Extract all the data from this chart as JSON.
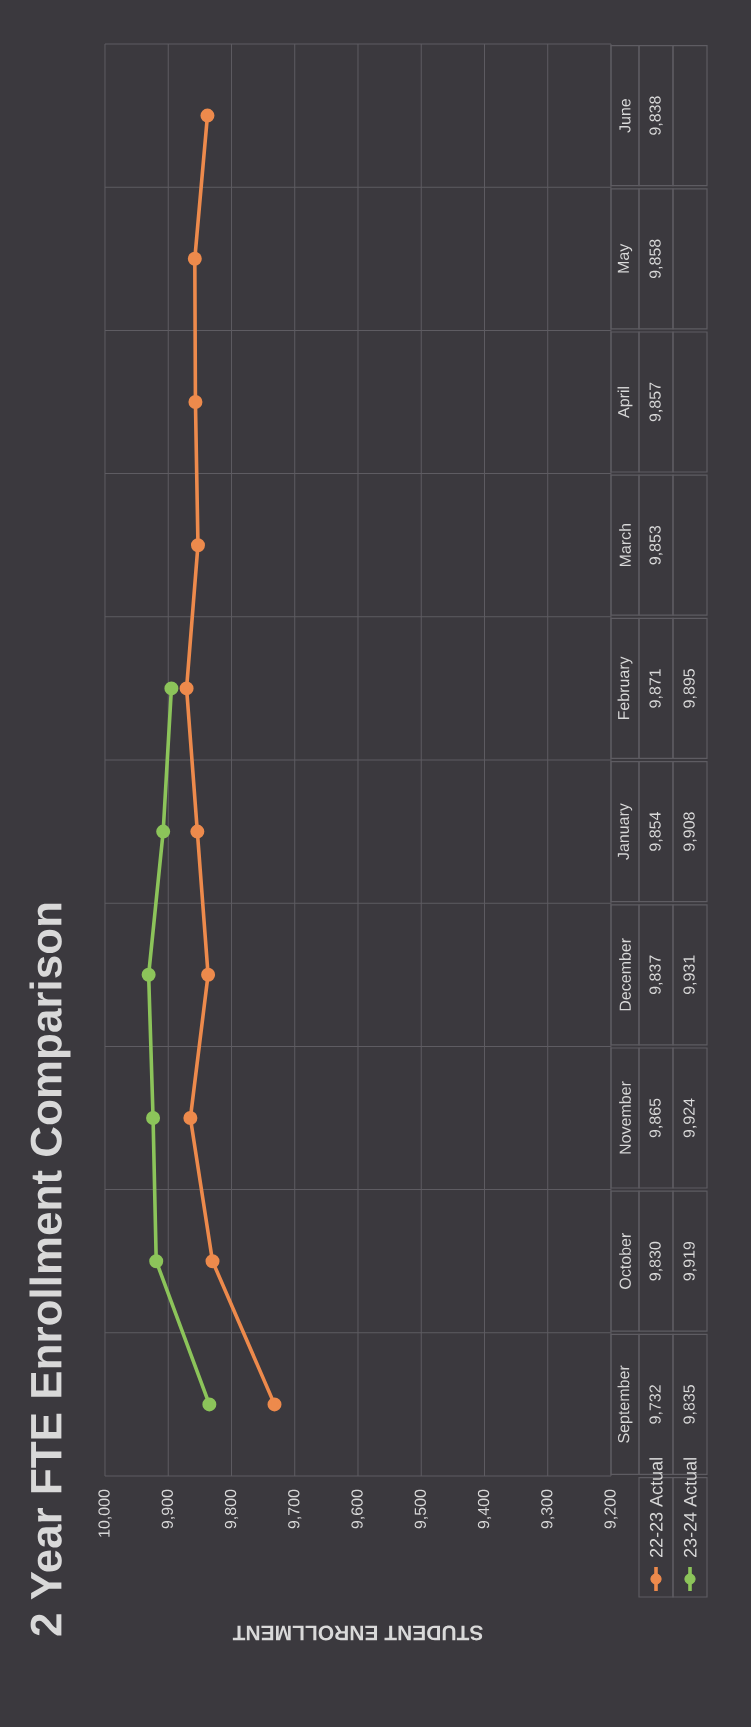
{
  "chart_data": {
    "type": "line",
    "title": "2 Year FTE Enrollment Comparison",
    "xlabel": "STUDENT ENROLLMENT",
    "orientation": "horizontal",
    "categories": [
      "June",
      "May",
      "April",
      "March",
      "February",
      "January",
      "December",
      "November",
      "October",
      "September"
    ],
    "series": [
      {
        "name": "22-23 Actual",
        "color": "#ed8a4c",
        "values": [
          9838,
          9858,
          9857,
          9853,
          9871,
          9854,
          9837,
          9865,
          9830,
          9732
        ],
        "value_labels": [
          "9,838",
          "9,858",
          "9,857",
          "9,853",
          "9,871",
          "9,854",
          "9,837",
          "9,865",
          "9,830",
          "9,732"
        ]
      },
      {
        "name": "23-24 Actual",
        "color": "#8cc45a",
        "values": [
          null,
          null,
          null,
          null,
          9895,
          9908,
          9931,
          9924,
          9919,
          9835
        ],
        "value_labels": [
          null,
          null,
          null,
          null,
          "9,895",
          "9,908",
          "9,931",
          "9,924",
          "9,919",
          "9,835"
        ]
      }
    ],
    "xlim": [
      10000,
      9200
    ],
    "xticks": [
      {
        "value": 9200,
        "label": "9,200"
      },
      {
        "value": 9300,
        "label": "9,300"
      },
      {
        "value": 9400,
        "label": "9,400"
      },
      {
        "value": 9500,
        "label": "9,500"
      },
      {
        "value": 9600,
        "label": "9,600"
      },
      {
        "value": 9700,
        "label": "9,700"
      },
      {
        "value": 9800,
        "label": "9,800"
      },
      {
        "value": 9900,
        "label": "9,900"
      },
      {
        "value": 10000,
        "label": "10,000"
      }
    ],
    "grid": true,
    "legend": "bottom",
    "marker": "circle"
  }
}
